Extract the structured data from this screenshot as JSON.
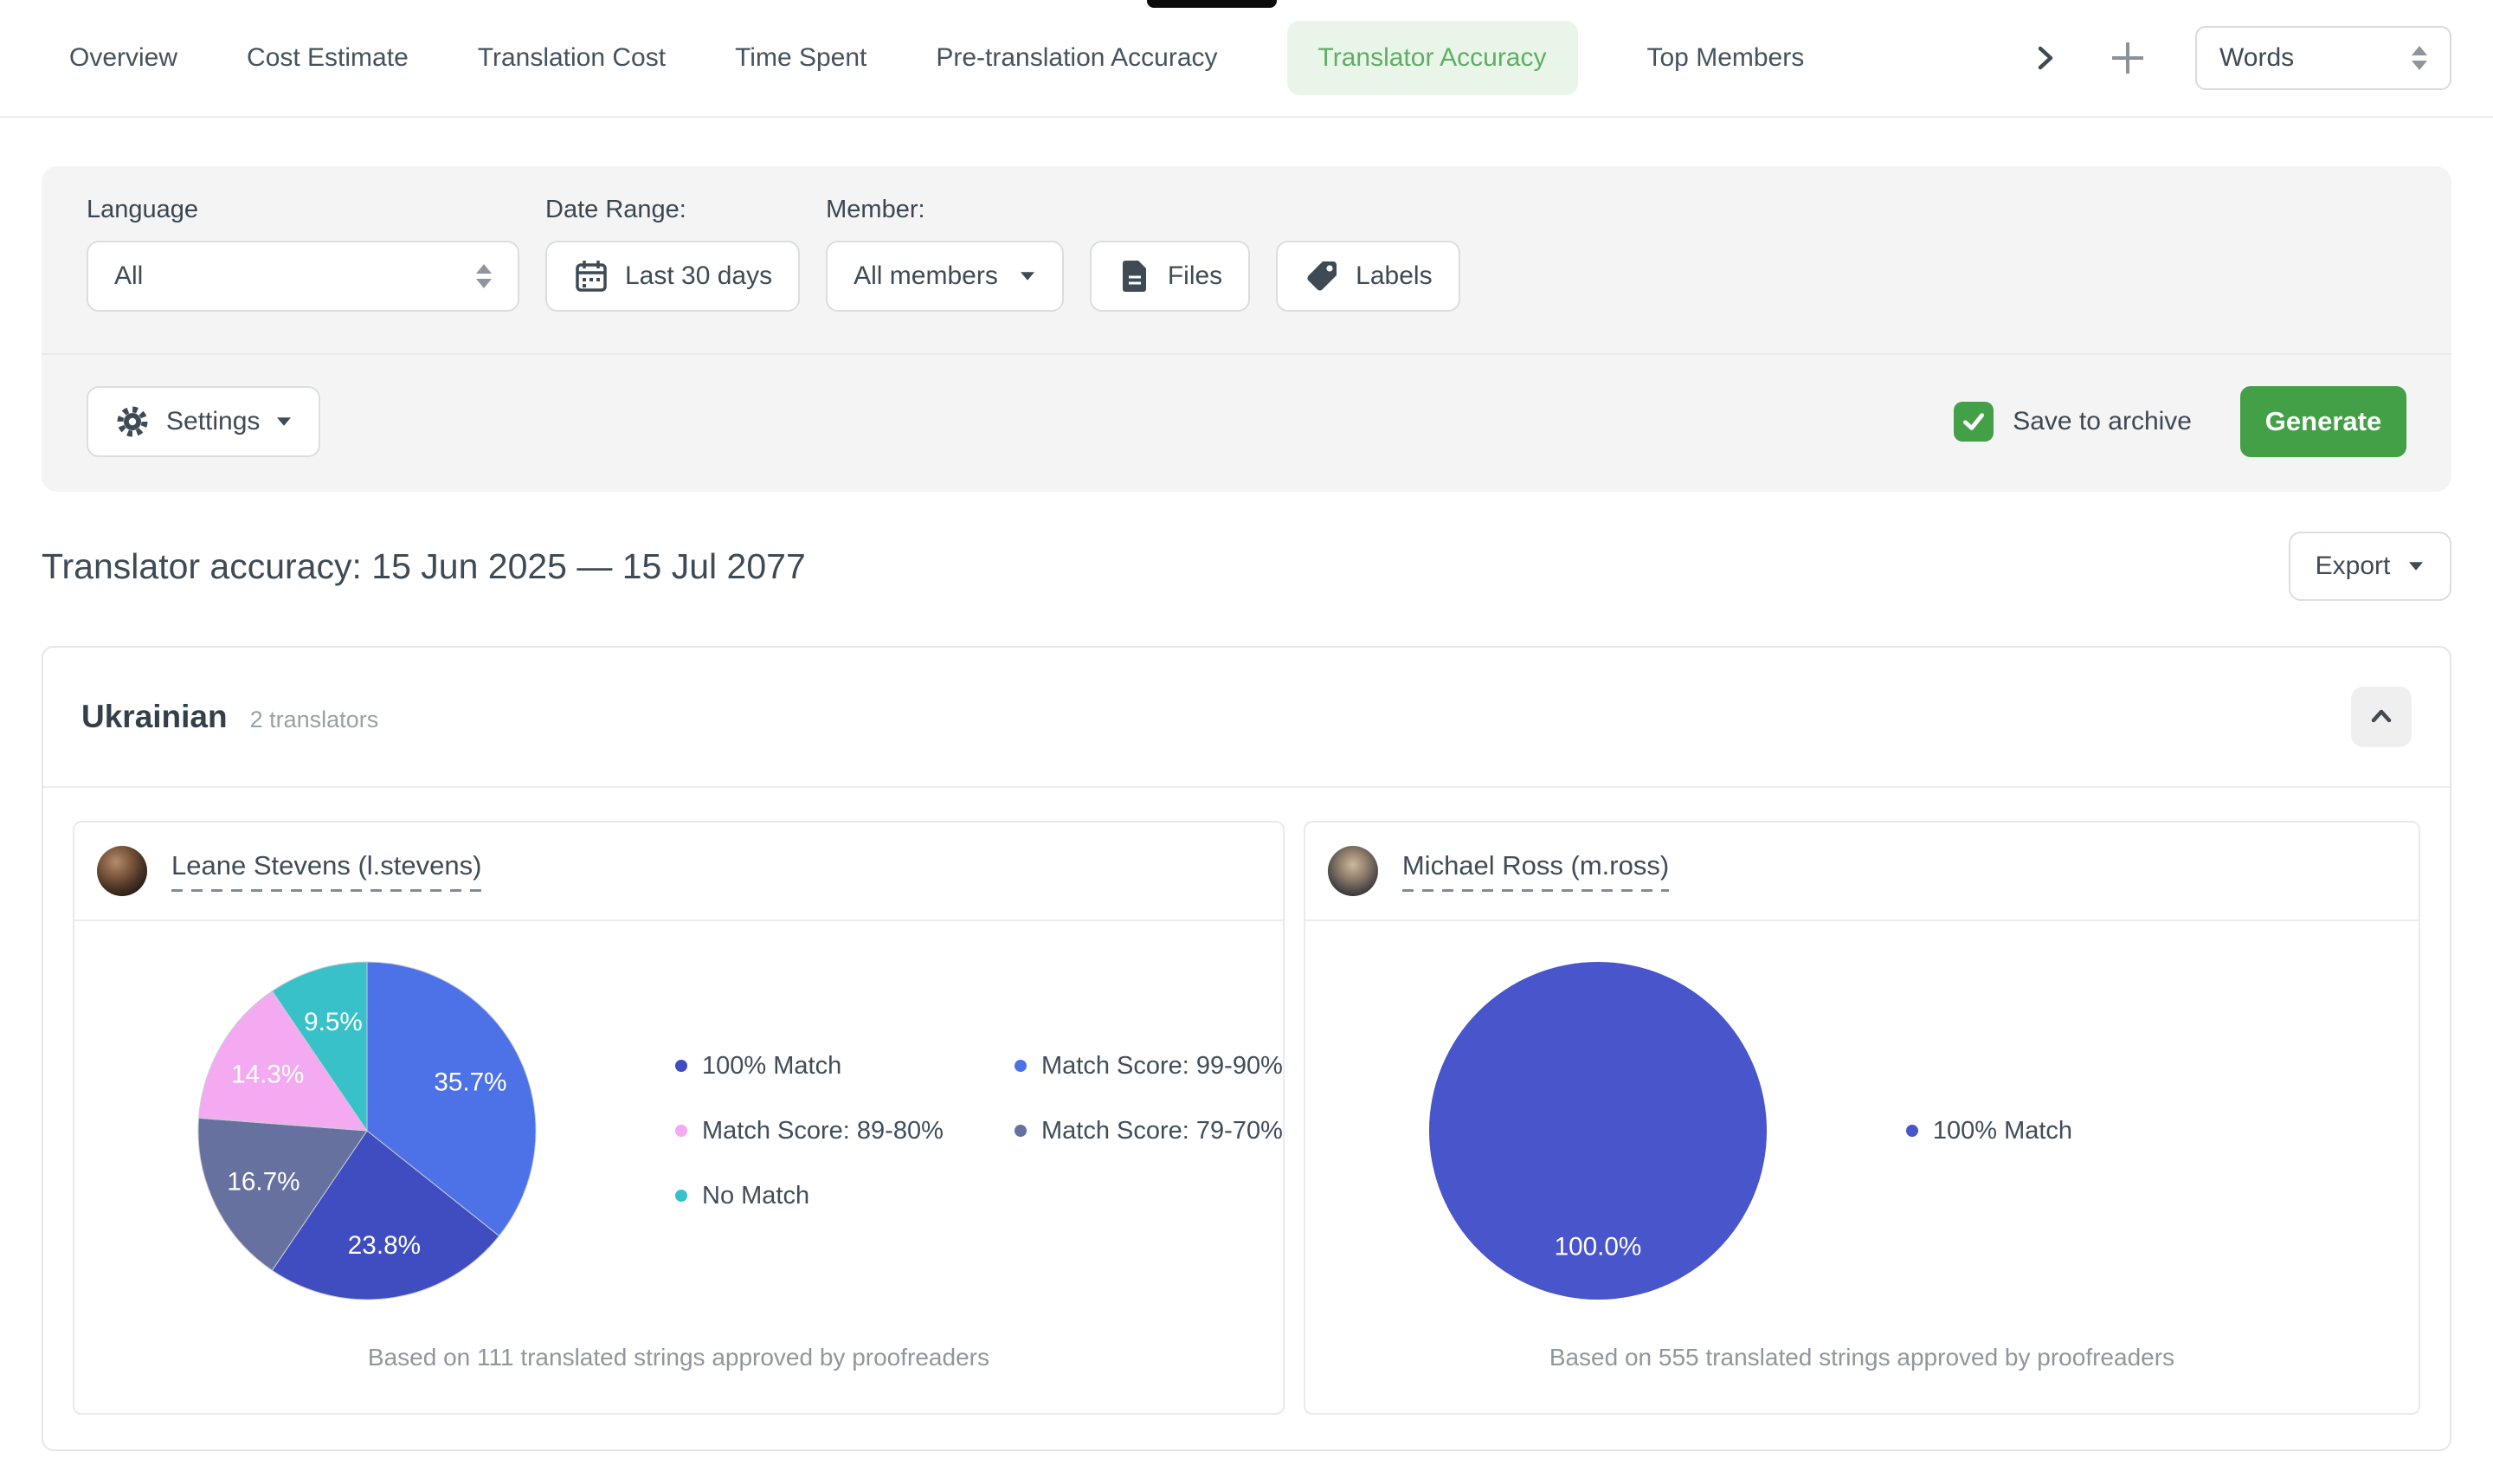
{
  "tabs": {
    "items": [
      {
        "label": "Overview",
        "active": false
      },
      {
        "label": "Cost Estimate",
        "active": false
      },
      {
        "label": "Translation Cost",
        "active": false
      },
      {
        "label": "Time Spent",
        "active": false
      },
      {
        "label": "Pre-translation Accuracy",
        "active": false
      },
      {
        "label": "Translator Accuracy",
        "active": true
      },
      {
        "label": "Top Members",
        "active": false
      }
    ],
    "unit_select": {
      "value": "Words"
    }
  },
  "filters": {
    "language": {
      "label": "Language",
      "value": "All"
    },
    "date_range": {
      "label": "Date Range:",
      "value": "Last 30 days"
    },
    "member": {
      "label": "Member:",
      "value": "All members"
    },
    "files_button": "Files",
    "labels_button": "Labels",
    "settings_button": "Settings",
    "save_to_archive": {
      "label": "Save to archive",
      "checked": true
    },
    "generate_button": "Generate"
  },
  "report": {
    "title": "Translator accuracy: 15 Jun 2025 — 15 Jul 2077",
    "export_button": "Export"
  },
  "section": {
    "language": "Ukrainian",
    "translators_count": "2 translators"
  },
  "colors": {
    "accent_green": "#43a047",
    "tab_active_text": "#5fae63",
    "tab_active_bg": "#e9f5e9"
  },
  "chart_data": [
    {
      "type": "pie",
      "translator": "Leane Stevens (l.stevens)",
      "slices": [
        {
          "label": "Match Score: 99-90%",
          "value": 35.7,
          "display": "35.7%",
          "color": "#4d72e8"
        },
        {
          "label": "100% Match",
          "value": 23.8,
          "display": "23.8%",
          "color": "#3f4dc0"
        },
        {
          "label": "Match Score: 79-70%",
          "value": 16.7,
          "display": "16.7%",
          "color": "#66719f"
        },
        {
          "label": "Match Score: 89-80%",
          "value": 14.3,
          "display": "14.3%",
          "color": "#f3aaf1"
        },
        {
          "label": "No Match",
          "value": 9.5,
          "display": "9.5%",
          "color": "#38c1c8"
        }
      ],
      "legend": [
        {
          "label": "100% Match",
          "color": "#3f4dc0"
        },
        {
          "label": "Match Score: 99-90%",
          "color": "#4d72e8"
        },
        {
          "label": "Match Score: 89-80%",
          "color": "#f3aaf1"
        },
        {
          "label": "Match Score: 79-70%",
          "color": "#66719f"
        },
        {
          "label": "No Match",
          "color": "#38c1c8"
        }
      ],
      "caption": "Based on 111 translated strings approved by proofreaders"
    },
    {
      "type": "pie",
      "translator": "Michael Ross (m.ross)",
      "slices": [
        {
          "label": "100% Match",
          "value": 100.0,
          "display": "100.0%",
          "color": "#4955cb"
        }
      ],
      "legend": [
        {
          "label": "100% Match",
          "color": "#4955cb"
        }
      ],
      "caption": "Based on 555 translated strings approved by proofreaders"
    }
  ]
}
